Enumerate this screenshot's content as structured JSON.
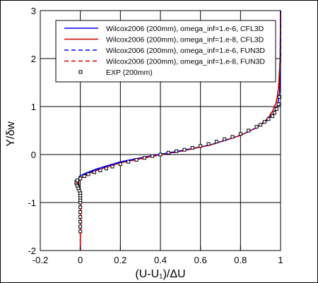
{
  "chart_data": {
    "type": "line",
    "title": "",
    "xlabel": "(U-U₁)/ΔU",
    "ylabel": "Y/δw",
    "xlim": [
      -0.2,
      1.0
    ],
    "ylim": [
      -2,
      3
    ],
    "xticks": [
      -0.2,
      0,
      0.2,
      0.4,
      0.6,
      0.8,
      1
    ],
    "xtick_labels": [
      "-0.2",
      "0",
      "0.2",
      "0.4",
      "0.6",
      "0.8",
      "1"
    ],
    "yticks": [
      -2,
      -1,
      0,
      1,
      2,
      3
    ],
    "ytick_labels": [
      "-2",
      "-1",
      "0",
      "1",
      "2",
      "3"
    ],
    "grid": true,
    "legend_position": "top-right",
    "series": [
      {
        "name": "Wilcox2006 (200mm), omega_inf=1.e-6, CFL3D",
        "color": "#0000ff",
        "dash": "solid",
        "x": [
          0,
          0,
          -0.005,
          -0.01,
          -0.005,
          0.02,
          0.08,
          0.2,
          0.35,
          0.5,
          0.65,
          0.8,
          0.88,
          0.93,
          0.965,
          0.985,
          0.995,
          1.0,
          1.0
        ],
        "y": [
          -2,
          -0.9,
          -0.7,
          -0.55,
          -0.45,
          -0.4,
          -0.3,
          -0.15,
          -0.03,
          0.08,
          0.2,
          0.4,
          0.56,
          0.7,
          0.85,
          1.0,
          1.3,
          2.0,
          3.0
        ]
      },
      {
        "name": "Wilcox2006 (200mm), omega_inf=1.e-8, CFL3D",
        "color": "#cc0000",
        "dash": "solid",
        "x": [
          0,
          0,
          -0.003,
          -0.008,
          -0.003,
          0.02,
          0.08,
          0.2,
          0.35,
          0.5,
          0.65,
          0.8,
          0.88,
          0.93,
          0.96,
          0.98,
          0.99,
          0.998,
          1.0
        ],
        "y": [
          -2,
          -0.9,
          -0.7,
          -0.58,
          -0.5,
          -0.43,
          -0.33,
          -0.17,
          -0.04,
          0.07,
          0.2,
          0.4,
          0.56,
          0.72,
          0.9,
          1.1,
          1.4,
          2.0,
          3.0
        ]
      },
      {
        "name": "Wilcox2006 (200mm), omega_inf=1.e-6, FUN3D",
        "color": "#0000ff",
        "dash": "dashed",
        "x": [
          0,
          0,
          -0.005,
          -0.01,
          -0.005,
          0.02,
          0.08,
          0.2,
          0.35,
          0.5,
          0.65,
          0.8,
          0.88,
          0.93,
          0.965,
          0.985,
          0.995,
          1.0,
          1.0
        ],
        "y": [
          -2,
          -0.9,
          -0.7,
          -0.56,
          -0.46,
          -0.41,
          -0.31,
          -0.16,
          -0.035,
          0.075,
          0.2,
          0.4,
          0.56,
          0.71,
          0.86,
          1.02,
          1.32,
          2.0,
          3.0
        ]
      },
      {
        "name": "Wilcox2006 (200mm), omega_inf=1.e-8, FUN3D",
        "color": "#cc0000",
        "dash": "dashed",
        "x": [
          0,
          0,
          -0.003,
          -0.008,
          -0.003,
          0.02,
          0.08,
          0.2,
          0.35,
          0.5,
          0.65,
          0.8,
          0.88,
          0.93,
          0.96,
          0.98,
          0.99,
          0.998,
          1.0
        ],
        "y": [
          -2,
          -0.9,
          -0.7,
          -0.59,
          -0.51,
          -0.44,
          -0.34,
          -0.18,
          -0.045,
          0.065,
          0.2,
          0.4,
          0.56,
          0.73,
          0.91,
          1.12,
          1.42,
          2.0,
          3.0
        ]
      },
      {
        "name": "EXP (200mm)",
        "color": "#000000",
        "marker": "square-open",
        "x": [
          0,
          0,
          0,
          0,
          0,
          0,
          0,
          0,
          0,
          0,
          0,
          -0.005,
          -0.01,
          -0.015,
          -0.02,
          -0.02,
          -0.015,
          0.0,
          0.02,
          0.04,
          0.07,
          0.1,
          0.13,
          0.16,
          0.2,
          0.24,
          0.28,
          0.32,
          0.36,
          0.4,
          0.44,
          0.48,
          0.52,
          0.56,
          0.6,
          0.64,
          0.68,
          0.72,
          0.76,
          0.8,
          0.84,
          0.88,
          0.9,
          0.92,
          0.94,
          0.96,
          0.97,
          0.98,
          0.99,
          0.995
        ],
        "y": [
          -1.6,
          -1.5,
          -1.4,
          -1.3,
          -1.2,
          -1.1,
          -1.0,
          -0.95,
          -0.9,
          -0.85,
          -0.8,
          -0.75,
          -0.7,
          -0.65,
          -0.6,
          -0.57,
          -0.54,
          -0.5,
          -0.45,
          -0.41,
          -0.37,
          -0.33,
          -0.29,
          -0.25,
          -0.2,
          -0.15,
          -0.11,
          -0.07,
          -0.03,
          0.0,
          0.04,
          0.07,
          0.1,
          0.14,
          0.18,
          0.22,
          0.27,
          0.32,
          0.37,
          0.43,
          0.5,
          0.58,
          0.62,
          0.68,
          0.74,
          0.8,
          0.87,
          0.95,
          1.05,
          1.2
        ]
      }
    ]
  }
}
